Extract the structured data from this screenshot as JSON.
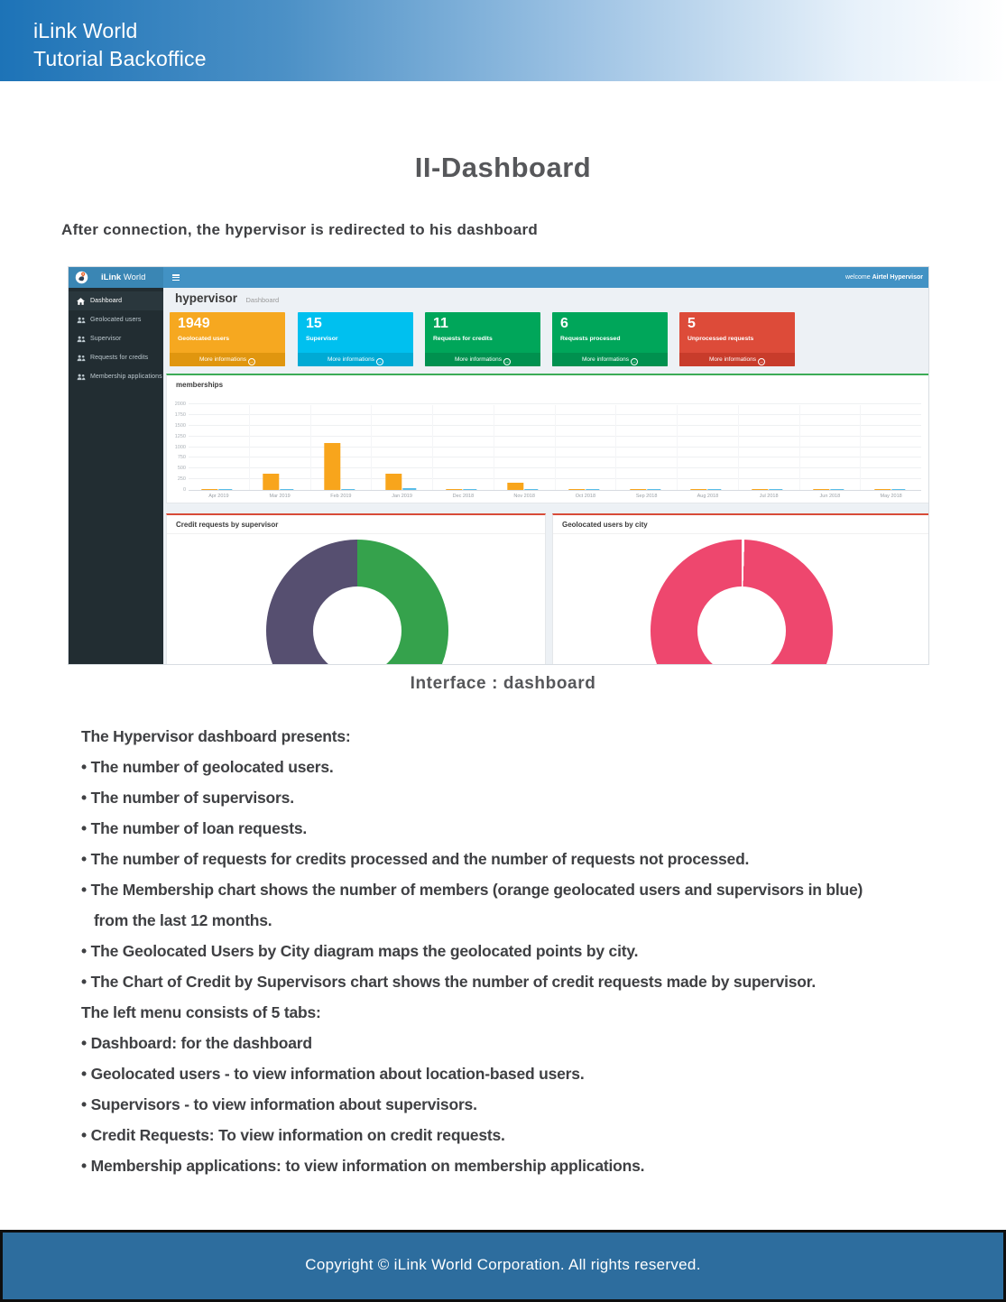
{
  "header": {
    "line1": "iLink World",
    "line2": "Tutorial Backoffice"
  },
  "title": "II-Dashboard",
  "intro": "After connection, the hypervisor is redirected to his dashboard",
  "caption": "Interface : dashboard",
  "body_lines": [
    {
      "text": "The Hypervisor dashboard presents:",
      "indent": false
    },
    {
      "text": "• The number of geolocated users.",
      "indent": false
    },
    {
      "text": "• The number of supervisors.",
      "indent": false
    },
    {
      "text": "• The number of loan requests.",
      "indent": false
    },
    {
      "text": "• The number of requests for credits processed and the number of requests not processed.",
      "indent": false
    },
    {
      "text": "• The Membership chart shows the number of members (orange geolocated users and supervisors in blue)",
      "indent": false
    },
    {
      "text": "from the last 12 months.",
      "indent": true
    },
    {
      "text": "• The Geolocated Users by City diagram maps the geolocated points by city.",
      "indent": false
    },
    {
      "text": "• The Chart of Credit by Supervisors chart shows the number of credit requests made by supervisor.",
      "indent": false
    },
    {
      "text": "The left menu consists of 5 tabs:",
      "indent": false
    },
    {
      "text": "• Dashboard: for the dashboard",
      "indent": false
    },
    {
      "text": "• Geolocated users - to view information about location-based users.",
      "indent": false
    },
    {
      "text": "• Supervisors - to view information about supervisors.",
      "indent": false
    },
    {
      "text": "• Credit Requests: To view information on credit requests.",
      "indent": false
    },
    {
      "text": "• Membership applications: to view information on membership applications.",
      "indent": false
    }
  ],
  "footer": "Copyright © iLink World Corporation. All rights reserved.",
  "dashboard": {
    "brand_bold": "iLink",
    "brand_regular": "World",
    "welcome_prefix": "welcome",
    "welcome_user": "Airtel Hypervisor",
    "page_title": "hypervisor",
    "page_subtitle": "Dashboard",
    "navbar_color": "#4292c4",
    "sidebar_color": "#222d32",
    "sidebar_items": [
      {
        "label": "Dashboard",
        "icon": "dashboard-icon",
        "active": true
      },
      {
        "label": "Geolocated users",
        "icon": "users-icon",
        "active": false
      },
      {
        "label": "Supervisor",
        "icon": "users-icon",
        "active": false
      },
      {
        "label": "Requests for credits",
        "icon": "users-icon",
        "active": false
      },
      {
        "label": "Membership applications",
        "icon": "users-icon",
        "active": false
      }
    ],
    "stat_cards": [
      {
        "value": "1949",
        "label": "Geolocated users",
        "link_label": "More informations",
        "color": "#f6a820",
        "footer_color": "#e0960f"
      },
      {
        "value": "15",
        "label": "Supervisor",
        "link_label": "More informations",
        "color": "#00c0ef",
        "footer_color": "#00aad4"
      },
      {
        "value": "11",
        "label": "Requests for credits",
        "link_label": "More informations",
        "color": "#00a65a",
        "footer_color": "#00914f"
      },
      {
        "value": "6",
        "label": "Requests processed",
        "link_label": "More informations",
        "color": "#00a65a",
        "footer_color": "#00914f"
      },
      {
        "value": "5",
        "label": "Unprocessed requests",
        "link_label": "More informations",
        "color": "#dd4b39",
        "footer_color": "#c83c2b"
      }
    ]
  },
  "chart_data": [
    {
      "type": "bar",
      "title": "memberships",
      "categories": [
        "Apr 2019",
        "Mar 2019",
        "Feb 2019",
        "Jan 2019",
        "Dec 2018",
        "Nov 2018",
        "Oct 2018",
        "Sep 2018",
        "Aug 2018",
        "Jul 2018",
        "Jun 2018",
        "May 2018"
      ],
      "series": [
        {
          "name": "Geolocated users",
          "color": "#f8a51c",
          "values": [
            15,
            370,
            1100,
            380,
            25,
            170,
            12,
            12,
            12,
            12,
            12,
            12
          ]
        },
        {
          "name": "Supervisors",
          "color": "#58bde8",
          "values": [
            15,
            15,
            15,
            40,
            12,
            15,
            12,
            12,
            12,
            12,
            12,
            12
          ]
        }
      ],
      "xlabel": "",
      "ylabel": "",
      "ylim": [
        0,
        2000
      ],
      "yticks": [
        0,
        250,
        500,
        750,
        1000,
        1250,
        1500,
        1750,
        2000
      ],
      "grid": true,
      "legend": "none",
      "accent_color": "#3cab56"
    },
    {
      "type": "pie",
      "title": "Credit requests by supervisor",
      "slices": [
        {
          "color": "#35a24c",
          "percent": 50
        },
        {
          "color": "#564f70",
          "percent": 50
        }
      ],
      "donut": true,
      "accent_color": "#d84b38"
    },
    {
      "type": "pie",
      "title": "Geolocated users by city",
      "slices": [
        {
          "color": "#ffffff",
          "percent": 0.5
        },
        {
          "color": "#ee476e",
          "percent": 99.5
        }
      ],
      "donut": true,
      "accent_color": "#d84b38"
    }
  ]
}
